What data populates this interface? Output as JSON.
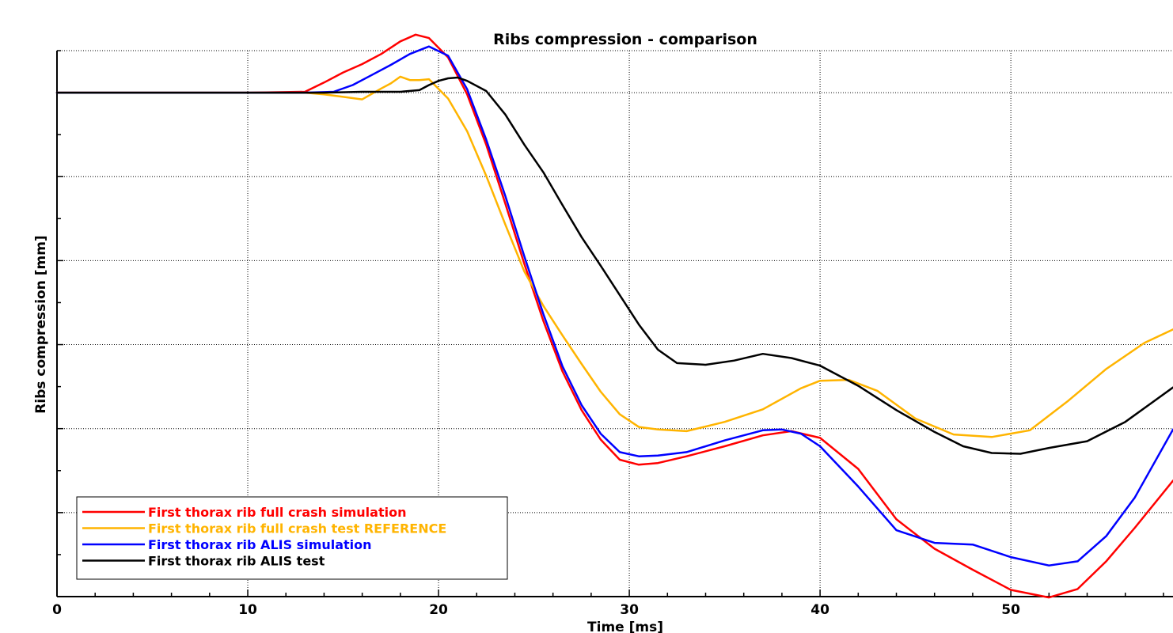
{
  "chart_data": {
    "type": "line",
    "title": "Ribs compression - comparison",
    "xlabel": "Time [ms]",
    "ylabel": "Ribs compression [mm]",
    "xlim": [
      0,
      58.5
    ],
    "ylim": [
      -55,
      10
    ],
    "x_ticks": [
      0,
      10,
      20,
      30,
      40,
      50
    ],
    "x_tick_labels": [
      "0",
      "10",
      "20",
      "30",
      "40",
      "50"
    ],
    "y_gridlines": [
      5,
      -5,
      -15,
      -25,
      -35,
      -45
    ],
    "y_tick_labels_shown": false,
    "grid": true,
    "grid_style": "dotted",
    "legend_position": "bottom-left",
    "series": [
      {
        "name": "First thorax rib full crash simulation",
        "color": "#ff0000",
        "x": [
          0,
          10,
          13,
          14,
          15,
          16,
          17,
          18,
          18.8,
          19.5,
          20.5,
          21.5,
          22.5,
          23.5,
          24.5,
          25.5,
          26.5,
          27.5,
          28.5,
          29.5,
          30.5,
          31.5,
          33,
          35,
          37,
          38.5,
          40,
          42,
          44,
          46,
          48,
          50,
          52,
          53.5,
          55,
          56.5,
          58.5
        ],
        "values": [
          5,
          5,
          5.1,
          6.2,
          7.4,
          8.4,
          9.6,
          11.1,
          11.9,
          11.5,
          9.2,
          4.8,
          -1.2,
          -8.2,
          -15.4,
          -22.2,
          -28.2,
          -32.8,
          -36.3,
          -38.7,
          -39.3,
          -39.1,
          -38.3,
          -37.1,
          -35.8,
          -35.3,
          -36.1,
          -39.8,
          -45.8,
          -49.3,
          -51.8,
          -54.2,
          -55.1,
          -54.1,
          -50.8,
          -46.8,
          -41.2
        ]
      },
      {
        "name": "First thorax rib full crash test REFERENCE",
        "color": "#ffb400",
        "x": [
          0,
          10,
          13,
          14,
          15,
          16,
          17,
          17.5,
          18,
          18.5,
          19,
          19.5,
          20.5,
          21.5,
          22.5,
          23.5,
          24.5,
          25.5,
          26.5,
          27.5,
          28.5,
          29.5,
          30.5,
          31.5,
          33,
          35,
          37,
          39,
          40,
          41.5,
          43,
          45,
          47,
          49,
          51,
          53,
          55,
          57,
          58.5
        ],
        "values": [
          5,
          5,
          5,
          4.8,
          4.5,
          4.2,
          5.5,
          6.1,
          6.9,
          6.5,
          6.5,
          6.6,
          4.3,
          0.4,
          -4.9,
          -10.7,
          -16.3,
          -20.4,
          -23.9,
          -27.3,
          -30.6,
          -33.3,
          -34.8,
          -35.1,
          -35.3,
          -34.2,
          -32.7,
          -30.2,
          -29.3,
          -29.2,
          -30.5,
          -33.8,
          -35.7,
          -36,
          -35.2,
          -31.7,
          -27.9,
          -24.8,
          -23.2
        ]
      },
      {
        "name": "First thorax rib ALIS simulation",
        "color": "#0000ff",
        "x": [
          0,
          10,
          13,
          14.5,
          15.5,
          16.5,
          17.5,
          18.5,
          19.5,
          20.5,
          21.5,
          22.5,
          23.5,
          24.5,
          25.5,
          26.5,
          27.5,
          28.5,
          29.5,
          30.5,
          31.5,
          33,
          35,
          37,
          38,
          39,
          40,
          42,
          44,
          46,
          48,
          50,
          52,
          53.5,
          55,
          56.5,
          58.5
        ],
        "values": [
          5,
          5,
          5,
          5.1,
          5.9,
          7.1,
          8.3,
          9.6,
          10.5,
          9.4,
          5.4,
          -0.6,
          -7.3,
          -14.5,
          -21.4,
          -27.6,
          -32.2,
          -35.6,
          -37.8,
          -38.3,
          -38.2,
          -37.8,
          -36.4,
          -35.2,
          -35.1,
          -35.6,
          -37.1,
          -41.9,
          -47.1,
          -48.6,
          -48.8,
          -50.3,
          -51.3,
          -50.8,
          -47.8,
          -43.2,
          -35.1
        ]
      },
      {
        "name": "First thorax rib ALIS test",
        "color": "#000000",
        "x": [
          0,
          10,
          14,
          16,
          18,
          19,
          19.5,
          20,
          20.5,
          21,
          21.5,
          22.5,
          23.5,
          24.5,
          25.5,
          26.5,
          27.5,
          28.5,
          29.5,
          30.5,
          31.5,
          32.5,
          34,
          35.5,
          37,
          38.5,
          40,
          42,
          44,
          46,
          47.5,
          49,
          50.5,
          52,
          54,
          56,
          58.5
        ],
        "values": [
          5,
          5,
          5,
          5.1,
          5.1,
          5.3,
          5.9,
          6.4,
          6.7,
          6.8,
          6.4,
          5.2,
          2.4,
          -1.2,
          -4.5,
          -8.4,
          -12.2,
          -15.6,
          -19.1,
          -22.6,
          -25.6,
          -27.2,
          -27.4,
          -26.9,
          -26.1,
          -26.6,
          -27.5,
          -29.9,
          -32.8,
          -35.4,
          -37.1,
          -37.9,
          -38,
          -37.3,
          -36.5,
          -34.2,
          -30.1
        ]
      }
    ]
  }
}
